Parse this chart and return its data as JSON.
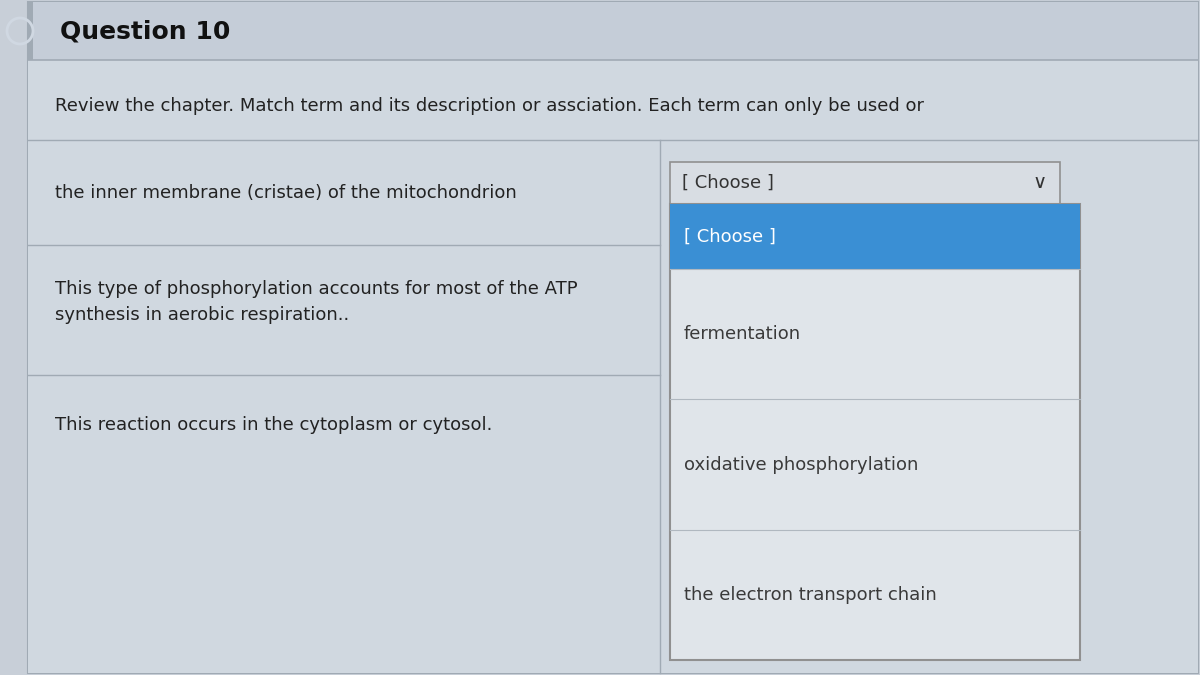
{
  "title": "Question 10",
  "instruction": "Review the chapter. Match term and its description or assciation. Each term can only be used or",
  "questions": [
    "the inner membrane (cristae) of the mitochondrion",
    "This type of phosphorylation accounts for most of the ATP\nsynthesis in aerobic respiration..",
    "This reaction occurs in the cytoplasm or cytosol."
  ],
  "dropdown_label": "[ Choose ]",
  "dropdown_items": [
    "[ Choose ]",
    "fermentation",
    "oxidative phosphorylation",
    "the electron transport chain"
  ],
  "header_bg": "#c5cdd8",
  "body_bg": "#c8cfd8",
  "inner_body_bg": "#d0d8e0",
  "dropdown_box_bg": "#d8dde3",
  "dropdown_open_bg": "#e0e5ea",
  "dropdown_highlight_bg": "#3a8fd4",
  "dropdown_highlight_text": "#ffffff",
  "dropdown_normal_text": "#3a3a3a",
  "title_color": "#111111",
  "question_text_color": "#222222",
  "instruction_text_color": "#222222",
  "border_color": "#a0aab4",
  "dropdown_border_color": "#909090",
  "left_border_color": "#a0aab4",
  "circle_color": "#d0d8e2"
}
